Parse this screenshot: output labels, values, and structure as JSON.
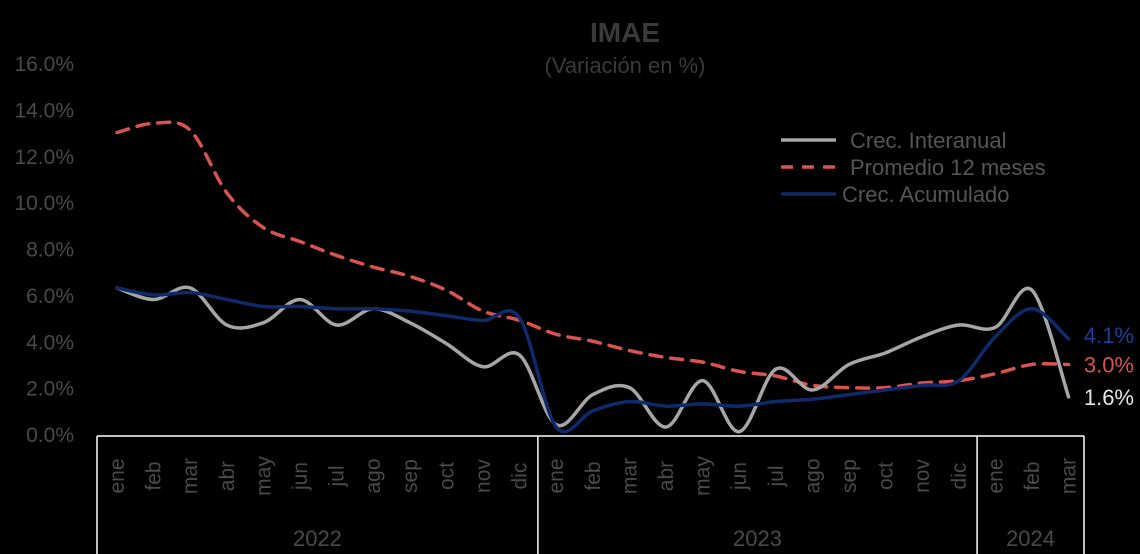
{
  "chart_data": {
    "type": "line",
    "title": "IMAE",
    "subtitle": "(Variación en %)",
    "ylim": [
      0,
      16
    ],
    "yticks": [
      "0.0%",
      "2.0%",
      "4.0%",
      "6.0%",
      "8.0%",
      "10.0%",
      "12.0%",
      "14.0%",
      "16.0%"
    ],
    "ytick_values": [
      0,
      2,
      4,
      6,
      8,
      10,
      12,
      14,
      16
    ],
    "categories": [
      "ene",
      "feb",
      "mar",
      "abr",
      "may",
      "jun",
      "jul",
      "ago",
      "sep",
      "oct",
      "nov",
      "dic",
      "ene",
      "feb",
      "mar",
      "abr",
      "may",
      "jun",
      "jul",
      "ago",
      "sep",
      "oct",
      "nov",
      "dic",
      "ene",
      "feb",
      "mar"
    ],
    "years": [
      {
        "label": "2022",
        "start": 0,
        "end": 11
      },
      {
        "label": "2023",
        "start": 12,
        "end": 23
      },
      {
        "label": "2024",
        "start": 24,
        "end": 26
      }
    ],
    "legend_position": "top-right",
    "series": [
      {
        "name": "Crec. Interanual",
        "color": "#a6a6a6",
        "style": "solid",
        "values": [
          6.3,
          5.8,
          6.3,
          4.7,
          4.8,
          5.8,
          4.7,
          5.4,
          4.8,
          3.9,
          2.9,
          3.4,
          0.4,
          1.7,
          2.0,
          0.3,
          2.3,
          0.1,
          2.8,
          1.9,
          3.0,
          3.5,
          4.2,
          4.7,
          4.6,
          6.2,
          1.6
        ],
        "end_label": "1.6%"
      },
      {
        "name": "Promedio 12 meses",
        "color": "#d9534f",
        "style": "dashed",
        "values": [
          13.0,
          13.4,
          13.1,
          10.4,
          8.9,
          8.3,
          7.7,
          7.2,
          6.8,
          6.2,
          5.3,
          4.9,
          4.3,
          4.0,
          3.6,
          3.3,
          3.1,
          2.7,
          2.5,
          2.1,
          2.0,
          2.0,
          2.2,
          2.3,
          2.6,
          3.0,
          3.0
        ],
        "end_label": "3.0%"
      },
      {
        "name": "Crec. Acumulado",
        "color": "#0f2a6b",
        "style": "solid",
        "values": [
          6.3,
          6.0,
          6.1,
          5.8,
          5.5,
          5.5,
          5.4,
          5.4,
          5.3,
          5.1,
          4.9,
          5.0,
          0.3,
          1.0,
          1.4,
          1.2,
          1.3,
          1.2,
          1.4,
          1.5,
          1.7,
          1.9,
          2.1,
          2.3,
          4.2,
          5.4,
          4.1
        ],
        "end_label": "4.1%"
      }
    ]
  }
}
